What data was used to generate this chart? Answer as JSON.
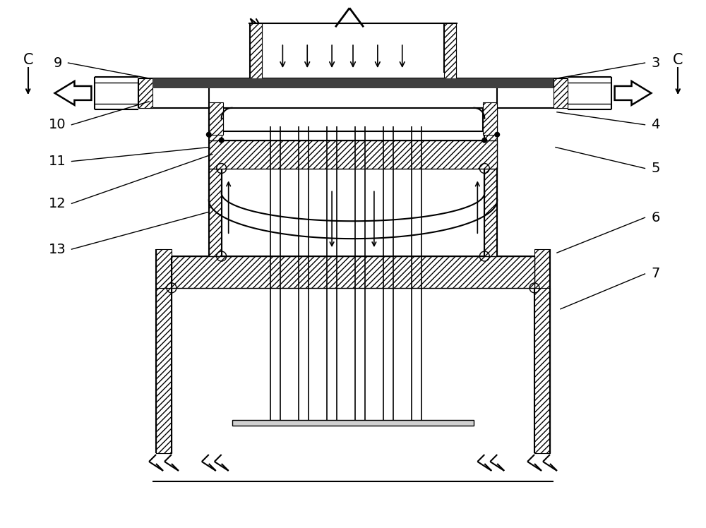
{
  "background_color": "#ffffff",
  "line_color": "#000000",
  "fig_width": 10.0,
  "fig_height": 7.48,
  "dpi": 100
}
